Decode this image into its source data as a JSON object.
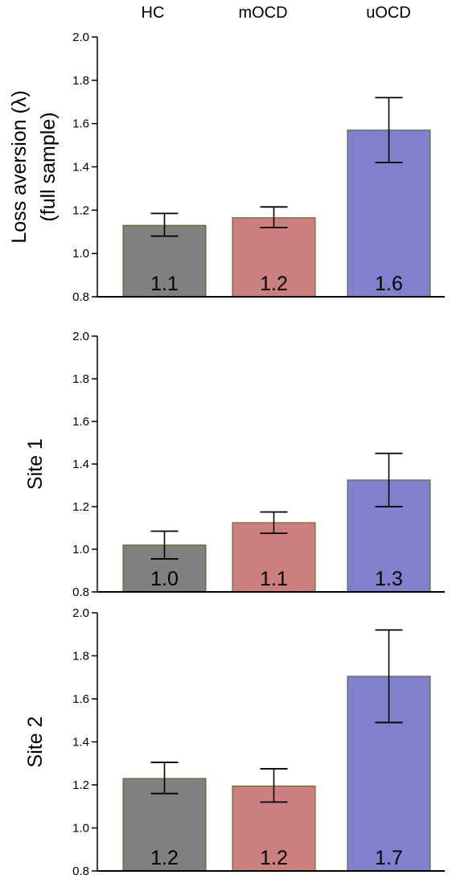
{
  "chart_data": {
    "type": "bar",
    "categories": [
      "HC",
      "mOCD",
      "uOCD"
    ],
    "colors": [
      "#808080",
      "#cc7f7f",
      "#8080cc"
    ],
    "ylim": [
      0.8,
      2.0
    ],
    "yticks": [
      "0.8",
      "1.0",
      "1.2",
      "1.4",
      "1.6",
      "1.8",
      "2.0"
    ],
    "panels": [
      {
        "ylabel_lines": [
          "Loss aversion (λ)",
          "(full sample)"
        ],
        "values": [
          1.13,
          1.165,
          1.57
        ],
        "error_low": [
          1.08,
          1.12,
          1.42
        ],
        "error_high": [
          1.185,
          1.215,
          1.72
        ],
        "bar_labels": [
          "1.1",
          "1.2",
          "1.6"
        ]
      },
      {
        "ylabel_lines": [
          "Site 1"
        ],
        "values": [
          1.02,
          1.125,
          1.325
        ],
        "error_low": [
          0.955,
          1.075,
          1.2
        ],
        "error_high": [
          1.085,
          1.175,
          1.45
        ],
        "bar_labels": [
          "1.0",
          "1.1",
          "1.3"
        ]
      },
      {
        "ylabel_lines": [
          "Site 2"
        ],
        "values": [
          1.23,
          1.195,
          1.705
        ],
        "error_low": [
          1.16,
          1.12,
          1.49
        ],
        "error_high": [
          1.305,
          1.275,
          1.92
        ],
        "bar_labels": [
          "1.2",
          "1.2",
          "1.7"
        ]
      }
    ]
  }
}
